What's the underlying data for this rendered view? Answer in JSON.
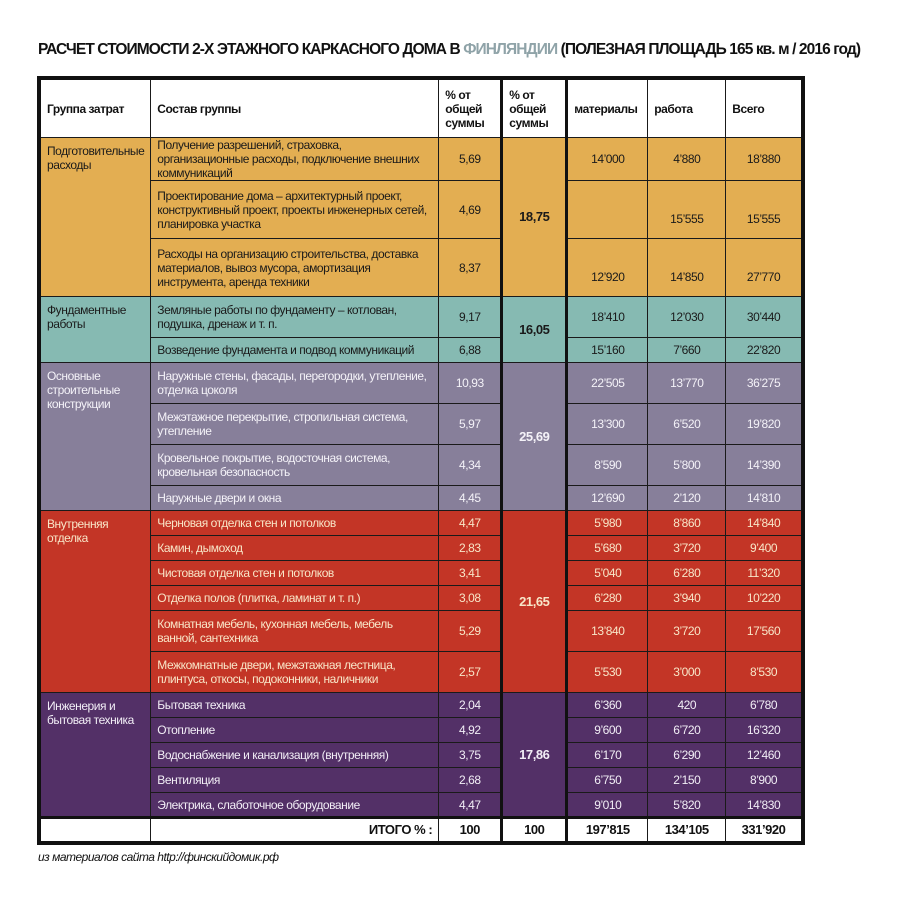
{
  "title": {
    "before": "РАСЧЕТ СТОИМОСТИ 2-Х ЭТАЖНОГО КАРКАСНОГО ДОМА В ",
    "accent": "ФИНЛЯНДИИ",
    "after": " (ПОЛЕЗНАЯ ПЛОЩАДЬ 165 кв. м / 2016 год)",
    "accent_color": "#8fa3a8"
  },
  "headers": [
    "Группа затрат",
    "Состав группы",
    "% от общей суммы",
    "% от общей суммы",
    "материалы",
    "работа",
    "Всего"
  ],
  "groups": [
    {
      "name": "Подготовительные расходы",
      "group_pct": "18,75",
      "color": "#e3ae52",
      "text_color": "#1a1a1a",
      "items": [
        {
          "name": "Получение разрешений, страховка, организационные расходы, подключение внешних коммуникаций",
          "pct": "5,69",
          "materials": "14’000",
          "work": "4’880",
          "total": "18’880"
        },
        {
          "name": "Проектирование дома – архитектурный проект, конструктивный проект, проекты инженерных сетей, планировка участка",
          "pct": "4,69",
          "materials": "",
          "work": "15’555",
          "total": "15’555"
        },
        {
          "name": "Расходы на организацию строительства, доставка материалов, вывоз мусора, амортизация инструмента, аренда техники",
          "pct": "8,37",
          "materials": "12’920",
          "work": "14’850",
          "total": "27’770"
        }
      ]
    },
    {
      "name": "Фундаментные работы",
      "group_pct": "16,05",
      "color": "#86bab2",
      "text_color": "#1a1a1a",
      "items": [
        {
          "name": "Земляные работы по фундаменту – котлован, подушка, дренаж и т. п.",
          "pct": "9,17",
          "materials": "18’410",
          "work": "12’030",
          "total": "30’440"
        },
        {
          "name": "Возведение фундамента и подвод коммуникаций",
          "pct": "6,88",
          "materials": "15’160",
          "work": "7’660",
          "total": "22’820"
        }
      ]
    },
    {
      "name": "Основные строительные конструкции",
      "group_pct": "25,69",
      "color": "#877f9a",
      "text_color": "#f4f2f8",
      "items": [
        {
          "name": "Наружные стены, фасады, перегородки, утепление, отделка цоколя",
          "pct": "10,93",
          "materials": "22’505",
          "work": "13’770",
          "total": "36’275"
        },
        {
          "name": "Межэтажное перекрытие, стропильная система, утепление",
          "pct": "5,97",
          "materials": "13’300",
          "work": "6’520",
          "total": "19’820"
        },
        {
          "name": "Кровельное покрытие, водосточная система, кровельная безопасность",
          "pct": "4,34",
          "materials": "8’590",
          "work": "5’800",
          "total": "14’390"
        },
        {
          "name": "Наружные двери и окна",
          "pct": "4,45",
          "materials": "12’690",
          "work": "2’120",
          "total": "14’810"
        }
      ]
    },
    {
      "name": "Внутренняя отделка",
      "group_pct": "21,65",
      "color": "#c33526",
      "text_color": "#f8e6c8",
      "items": [
        {
          "name": "Черновая отделка стен и потолков",
          "pct": "4,47",
          "materials": "5’980",
          "work": "8’860",
          "total": "14’840"
        },
        {
          "name": "Камин, дымоход",
          "pct": "2,83",
          "materials": "5’680",
          "work": "3’720",
          "total": "9’400"
        },
        {
          "name": "Чистовая отделка стен и потолков",
          "pct": "3,41",
          "materials": "5’040",
          "work": "6’280",
          "total": "11’320"
        },
        {
          "name": "Отделка полов (плитка, ламинат и т. п.)",
          "pct": "3,08",
          "materials": "6’280",
          "work": "3’940",
          "total": "10’220"
        },
        {
          "name": "Комнатная мебель, кухонная мебель, мебель ванной, сантехника",
          "pct": "5,29",
          "materials": "13’840",
          "work": "3’720",
          "total": "17’560"
        },
        {
          "name": "Межкомнатные двери, межэтажная лестница, плинтуса, откосы, подоконники, наличники",
          "pct": "2,57",
          "materials": "5’530",
          "work": "3’000",
          "total": "8’530"
        }
      ]
    },
    {
      "name": "Инженерия и бытовая техника",
      "group_pct": "17,86",
      "color": "#533067",
      "text_color": "#f2eef6",
      "items": [
        {
          "name": "Бытовая техника",
          "pct": "2,04",
          "materials": "6’360",
          "work": "420",
          "total": "6’780"
        },
        {
          "name": "Отопление",
          "pct": "4,92",
          "materials": "9’600",
          "work": "6’720",
          "total": "16’320"
        },
        {
          "name": "Водоснабжение и канализация (внутренняя)",
          "pct": "3,75",
          "materials": "6’170",
          "work": "6’290",
          "total": "12’460"
        },
        {
          "name": "Вентиляция",
          "pct": "2,68",
          "materials": "6’750",
          "work": "2’150",
          "total": "8’900"
        },
        {
          "name": "Электрика, слаботочное оборудование",
          "pct": "4,47",
          "materials": "9’010",
          "work": "5’820",
          "total": "14’830"
        }
      ]
    }
  ],
  "total": {
    "label": "ИТОГО % :",
    "pct": "100",
    "group_pct": "100",
    "materials": "197’815",
    "work": "134’105",
    "total": "331’920"
  },
  "source": "из материалов сайта http://финскийдомик.рф"
}
